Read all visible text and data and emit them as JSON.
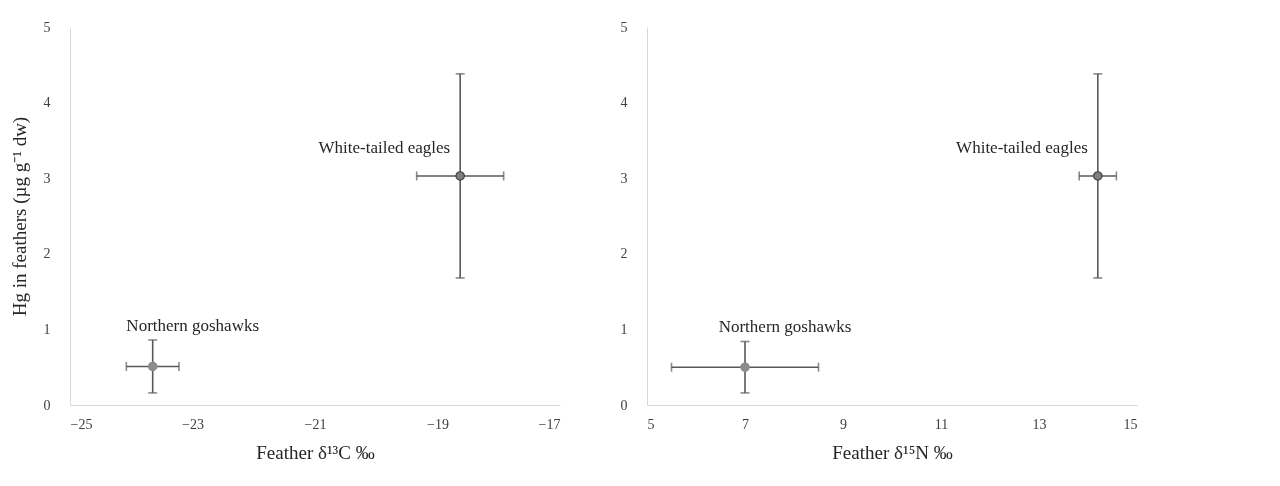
{
  "chart_data": [
    {
      "type": "scatter",
      "xlabel": "Feather δ¹³C ‰",
      "ylabel": "Hg in feathers (µg g⁻¹ dw)",
      "xlim": [
        -25,
        -17
      ],
      "xticks": [
        -25,
        -23,
        -21,
        -19,
        -17
      ],
      "ylim": [
        0,
        5
      ],
      "yticks": [
        0,
        1,
        2,
        3,
        4,
        5
      ],
      "marker": "circle",
      "grid": false,
      "series": [
        {
          "name": "Northern goshawks",
          "color": "#8c8c8c",
          "x": [
            -23.65
          ],
          "values": [
            0.51
          ],
          "errors": [
            0.35
          ],
          "xerrors": [
            0.43
          ]
        },
        {
          "name": "White-tailed eagles",
          "color": "#7f7f7f",
          "x": [
            -18.63
          ],
          "values": [
            3.03
          ],
          "errors": [
            1.35
          ],
          "xerrors": [
            0.71
          ]
        }
      ]
    },
    {
      "type": "scatter",
      "xlabel": "Feather δ¹⁵N ‰",
      "xlim": [
        5,
        15
      ],
      "xticks": [
        5,
        7,
        9,
        11,
        13,
        15
      ],
      "ylim": [
        0,
        5
      ],
      "yticks": [
        0,
        1,
        2,
        3,
        4,
        5
      ],
      "marker": "circle",
      "grid": false,
      "series": [
        {
          "name": "Northern goshawks",
          "color": "#8c8c8c",
          "x": [
            7.0
          ],
          "values": [
            0.5
          ],
          "errors": [
            0.34
          ],
          "xerrors": [
            1.5
          ]
        },
        {
          "name": "White-tailed eagles",
          "color": "#7f7f7f",
          "x": [
            14.2
          ],
          "values": [
            3.03
          ],
          "errors": [
            1.35
          ],
          "xerrors": [
            0.38
          ]
        }
      ]
    }
  ]
}
